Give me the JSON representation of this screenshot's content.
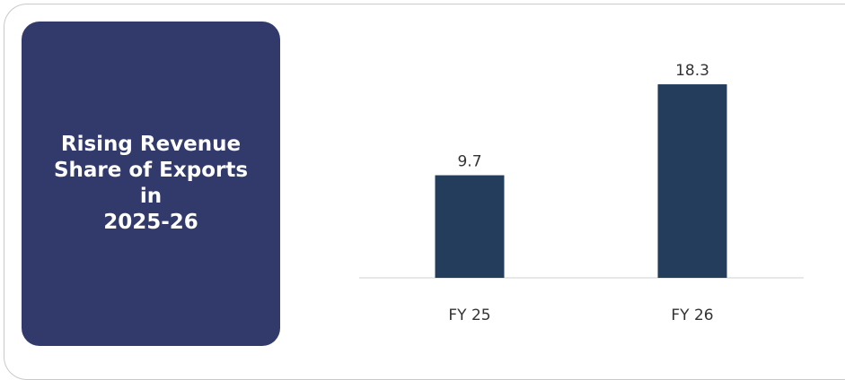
{
  "panel": {
    "title_lines": [
      "Rising Revenue",
      "Share of Exports",
      "in",
      "2025-26"
    ]
  },
  "colors": {
    "panel_bg": "#313a6b",
    "bar": "#243d5c",
    "axis": "#d0d0d0",
    "text": "#333333"
  },
  "chart_data": {
    "type": "bar",
    "categories": [
      "FY 25",
      "FY 26"
    ],
    "values": [
      9.7,
      18.3
    ],
    "data_labels": [
      "9.7",
      "18.3"
    ],
    "title": "",
    "xlabel": "",
    "ylabel": "",
    "ylim": [
      0,
      20
    ],
    "grid": false,
    "legend": "none"
  }
}
